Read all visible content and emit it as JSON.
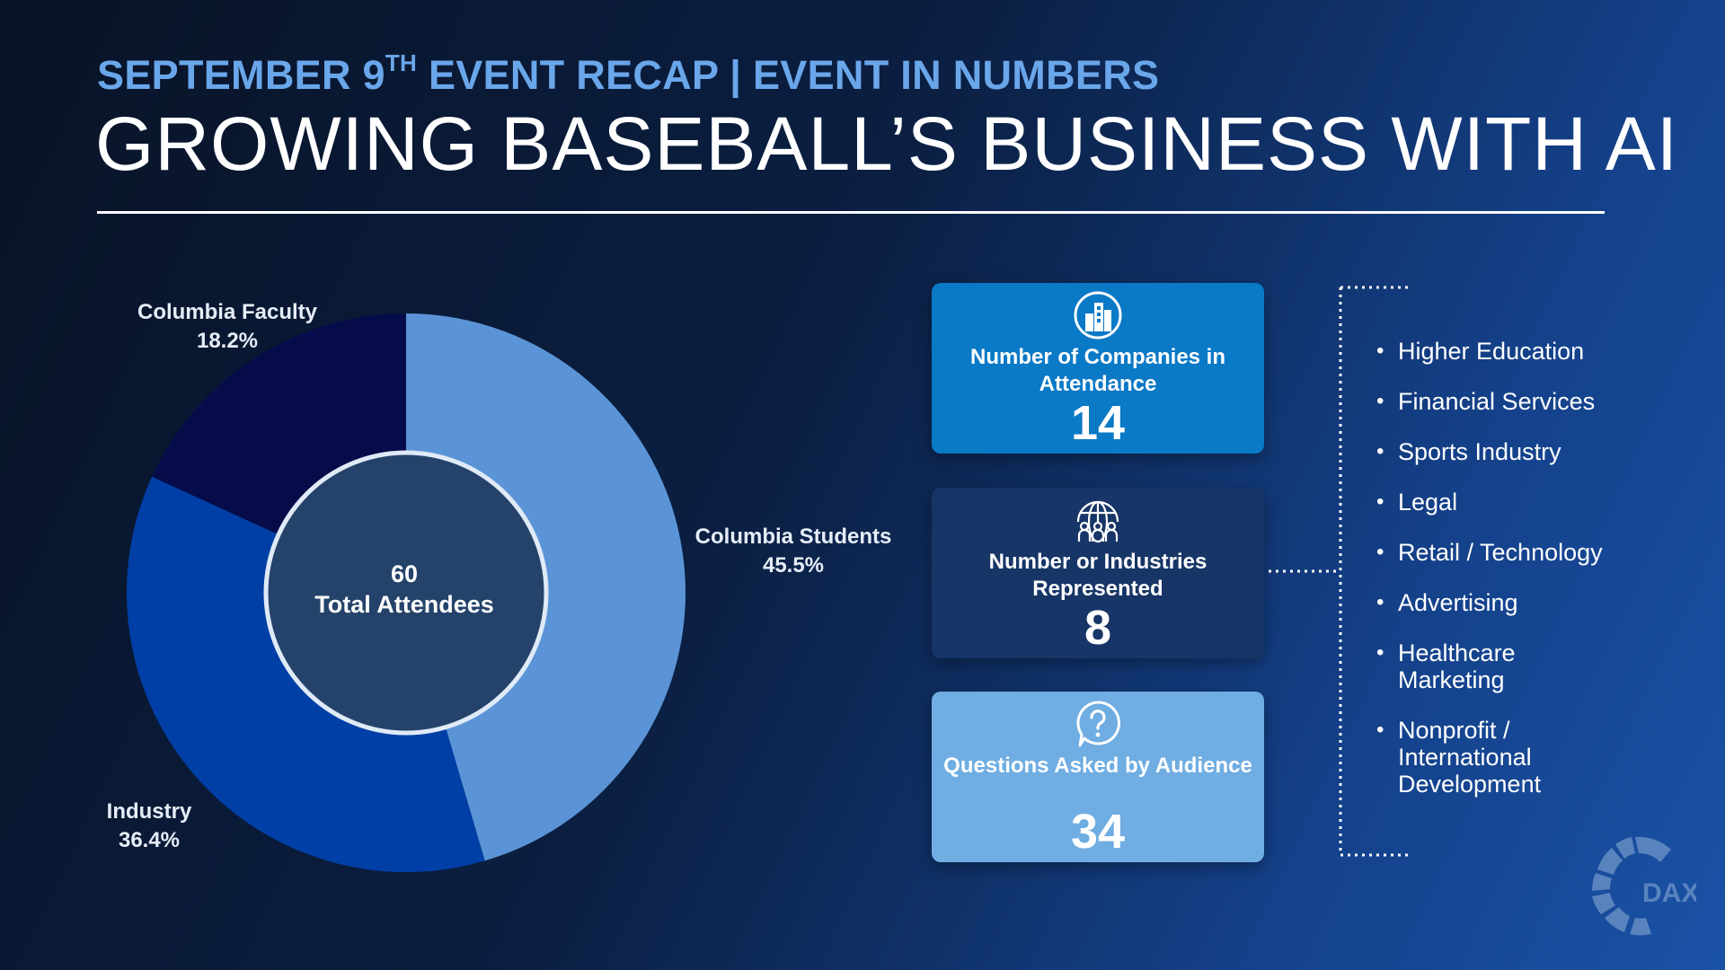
{
  "header": {
    "subtitle_pre": "SEPTEMBER 9",
    "subtitle_sup": "TH",
    "subtitle_post": " EVENT RECAP | EVENT IN NUMBERS",
    "title": "GROWING BASEBALL’S BUSINESS WITH AI"
  },
  "colors": {
    "columbia_students": "#5b94d6",
    "industry": "#003fa6",
    "columbia_faculty": "#060c4a",
    "center_fill": "#25436a",
    "center_ring": "#dfeaf7"
  },
  "chart_data": {
    "type": "pie",
    "center_value": "60",
    "center_label": "Total Attendees",
    "slices": [
      {
        "name": "Columbia Students",
        "value": 45.5,
        "label": "45.5%"
      },
      {
        "name": "Industry",
        "value": 36.4,
        "label": "36.4%"
      },
      {
        "name": "Columbia Faculty",
        "value": 18.2,
        "label": "18.2%"
      }
    ]
  },
  "cards": [
    {
      "label": "Number of Companies in Attendance",
      "value": "14",
      "icon": "building-icon"
    },
    {
      "label": "Number or Industries Represented",
      "value": "8",
      "icon": "globe-people-icon"
    },
    {
      "label": "Questions Asked by Audience",
      "value": "34",
      "icon": "question-bubble-icon"
    }
  ],
  "industries": [
    "Higher Education",
    "Financial Services",
    "Sports Industry",
    "Legal",
    "Retail / Technology",
    "Advertising",
    "Healthcare Marketing",
    "Nonprofit / International Development"
  ],
  "logo": {
    "text": "DAX"
  }
}
